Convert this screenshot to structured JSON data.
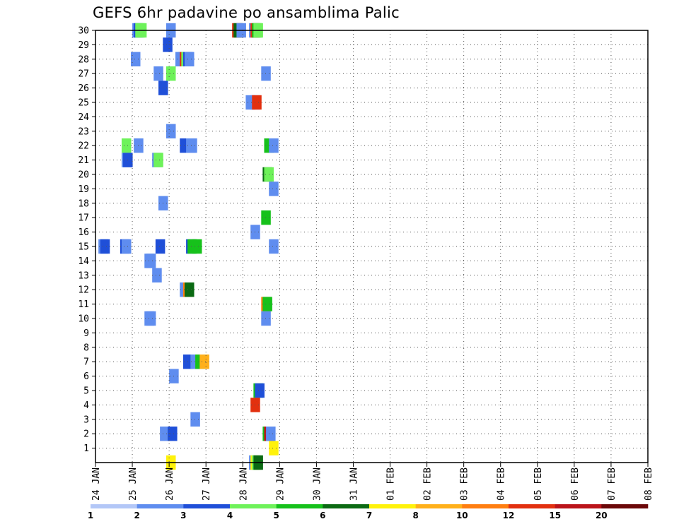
{
  "title": "GEFS 6hr padavine po ansamblima Palic",
  "chart_data": {
    "type": "heatmap",
    "title": "GEFS 6hr padavine po ansamblima Palic",
    "x_tick_labels": [
      "24 JAN",
      "25 JAN",
      "26 JAN",
      "27 JAN",
      "28 JAN",
      "29 JAN",
      "30 JAN",
      "31 JAN",
      "01 FEB",
      "02 FEB",
      "03 FEB",
      "04 FEB",
      "05 FEB",
      "06 FEB",
      "07 FEB",
      "08 FEB"
    ],
    "y_tick_labels": [
      "1",
      "2",
      "3",
      "4",
      "5",
      "6",
      "7",
      "8",
      "9",
      "10",
      "11",
      "12",
      "13",
      "14",
      "15",
      "16",
      "17",
      "18",
      "19",
      "20",
      "21",
      "22",
      "23",
      "24",
      "25",
      "26",
      "27",
      "28",
      "29",
      "30"
    ],
    "x_range_days": [
      0,
      15
    ],
    "y_range": [
      0,
      30
    ],
    "grid": true,
    "colorbar": {
      "labels": [
        "1",
        "2",
        "3",
        "4",
        "5",
        "6",
        "7",
        "8",
        "10",
        "12",
        "15",
        "20"
      ],
      "colors": [
        "#b3c7f7",
        "#5f8def",
        "#1f4fd8",
        "#6ef25a",
        "#16c11b",
        "#0b6a13",
        "#fff20a",
        "#ffb01a",
        "#ff7e10",
        "#e2300f",
        "#bb141a",
        "#6b0809"
      ]
    },
    "cells": [
      [
        30,
        1.0,
        1
      ],
      [
        30,
        1.04,
        2
      ],
      [
        30,
        1.08,
        3
      ],
      [
        30,
        1.13,
        3
      ],
      [
        30,
        1.92,
        1
      ],
      [
        30,
        3.71,
        9
      ],
      [
        30,
        3.75,
        5
      ],
      [
        30,
        3.83,
        1
      ],
      [
        30,
        4.17,
        1
      ],
      [
        30,
        4.21,
        9
      ],
      [
        30,
        4.25,
        4
      ],
      [
        30,
        4.29,
        3
      ],
      [
        29,
        1.83,
        2
      ],
      [
        28,
        0.96,
        1
      ],
      [
        28,
        2.17,
        1
      ],
      [
        28,
        2.25,
        1
      ],
      [
        28,
        2.29,
        9
      ],
      [
        28,
        2.33,
        3
      ],
      [
        28,
        2.38,
        2
      ],
      [
        28,
        2.42,
        1
      ],
      [
        27,
        1.58,
        1
      ],
      [
        27,
        1.92,
        3
      ],
      [
        27,
        4.5,
        1
      ],
      [
        26,
        1.71,
        2
      ],
      [
        25,
        4.08,
        1
      ],
      [
        25,
        4.21,
        1
      ],
      [
        25,
        4.25,
        9
      ],
      [
        23,
        1.92,
        1
      ],
      [
        22,
        0.71,
        3
      ],
      [
        22,
        1.04,
        1
      ],
      [
        22,
        2.29,
        2
      ],
      [
        22,
        2.46,
        1
      ],
      [
        22,
        2.5,
        1
      ],
      [
        22,
        4.58,
        4
      ],
      [
        22,
        4.71,
        1
      ],
      [
        21,
        0.71,
        1
      ],
      [
        21,
        0.75,
        2
      ],
      [
        21,
        1.54,
        1
      ],
      [
        21,
        1.58,
        3
      ],
      [
        20,
        4.54,
        5
      ],
      [
        20,
        4.58,
        3
      ],
      [
        19,
        4.71,
        1
      ],
      [
        18,
        1.71,
        1
      ],
      [
        17,
        4.5,
        4
      ],
      [
        16,
        4.21,
        1
      ],
      [
        15,
        0.08,
        1
      ],
      [
        15,
        0.13,
        2
      ],
      [
        15,
        0.67,
        2
      ],
      [
        15,
        0.71,
        1
      ],
      [
        15,
        1.63,
        2
      ],
      [
        15,
        2.46,
        2
      ],
      [
        15,
        2.5,
        4
      ],
      [
        15,
        2.63,
        4
      ],
      [
        15,
        4.71,
        1
      ],
      [
        14,
        1.33,
        1
      ],
      [
        14,
        1.38,
        1
      ],
      [
        13,
        1.54,
        1
      ],
      [
        12,
        2.29,
        1
      ],
      [
        12,
        2.38,
        8
      ],
      [
        12,
        2.42,
        5
      ],
      [
        11,
        4.5,
        8
      ],
      [
        11,
        4.54,
        4
      ],
      [
        10,
        1.33,
        1
      ],
      [
        10,
        1.38,
        1
      ],
      [
        10,
        4.5,
        1
      ],
      [
        7,
        2.38,
        2
      ],
      [
        7,
        2.58,
        1
      ],
      [
        7,
        2.71,
        4
      ],
      [
        7,
        2.83,
        7
      ],
      [
        6,
        2.0,
        1
      ],
      [
        5,
        4.29,
        4
      ],
      [
        5,
        4.33,
        2
      ],
      [
        4,
        4.21,
        9
      ],
      [
        3,
        2.58,
        1
      ],
      [
        2,
        1.75,
        1
      ],
      [
        2,
        1.96,
        2
      ],
      [
        2,
        4.54,
        4
      ],
      [
        2,
        4.58,
        10
      ],
      [
        2,
        4.63,
        1
      ],
      [
        1,
        4.71,
        6
      ],
      [
        0,
        1.92,
        6
      ],
      [
        0,
        4.17,
        1
      ],
      [
        0,
        4.21,
        6
      ],
      [
        0,
        4.25,
        3
      ],
      [
        0,
        4.29,
        5
      ]
    ]
  }
}
